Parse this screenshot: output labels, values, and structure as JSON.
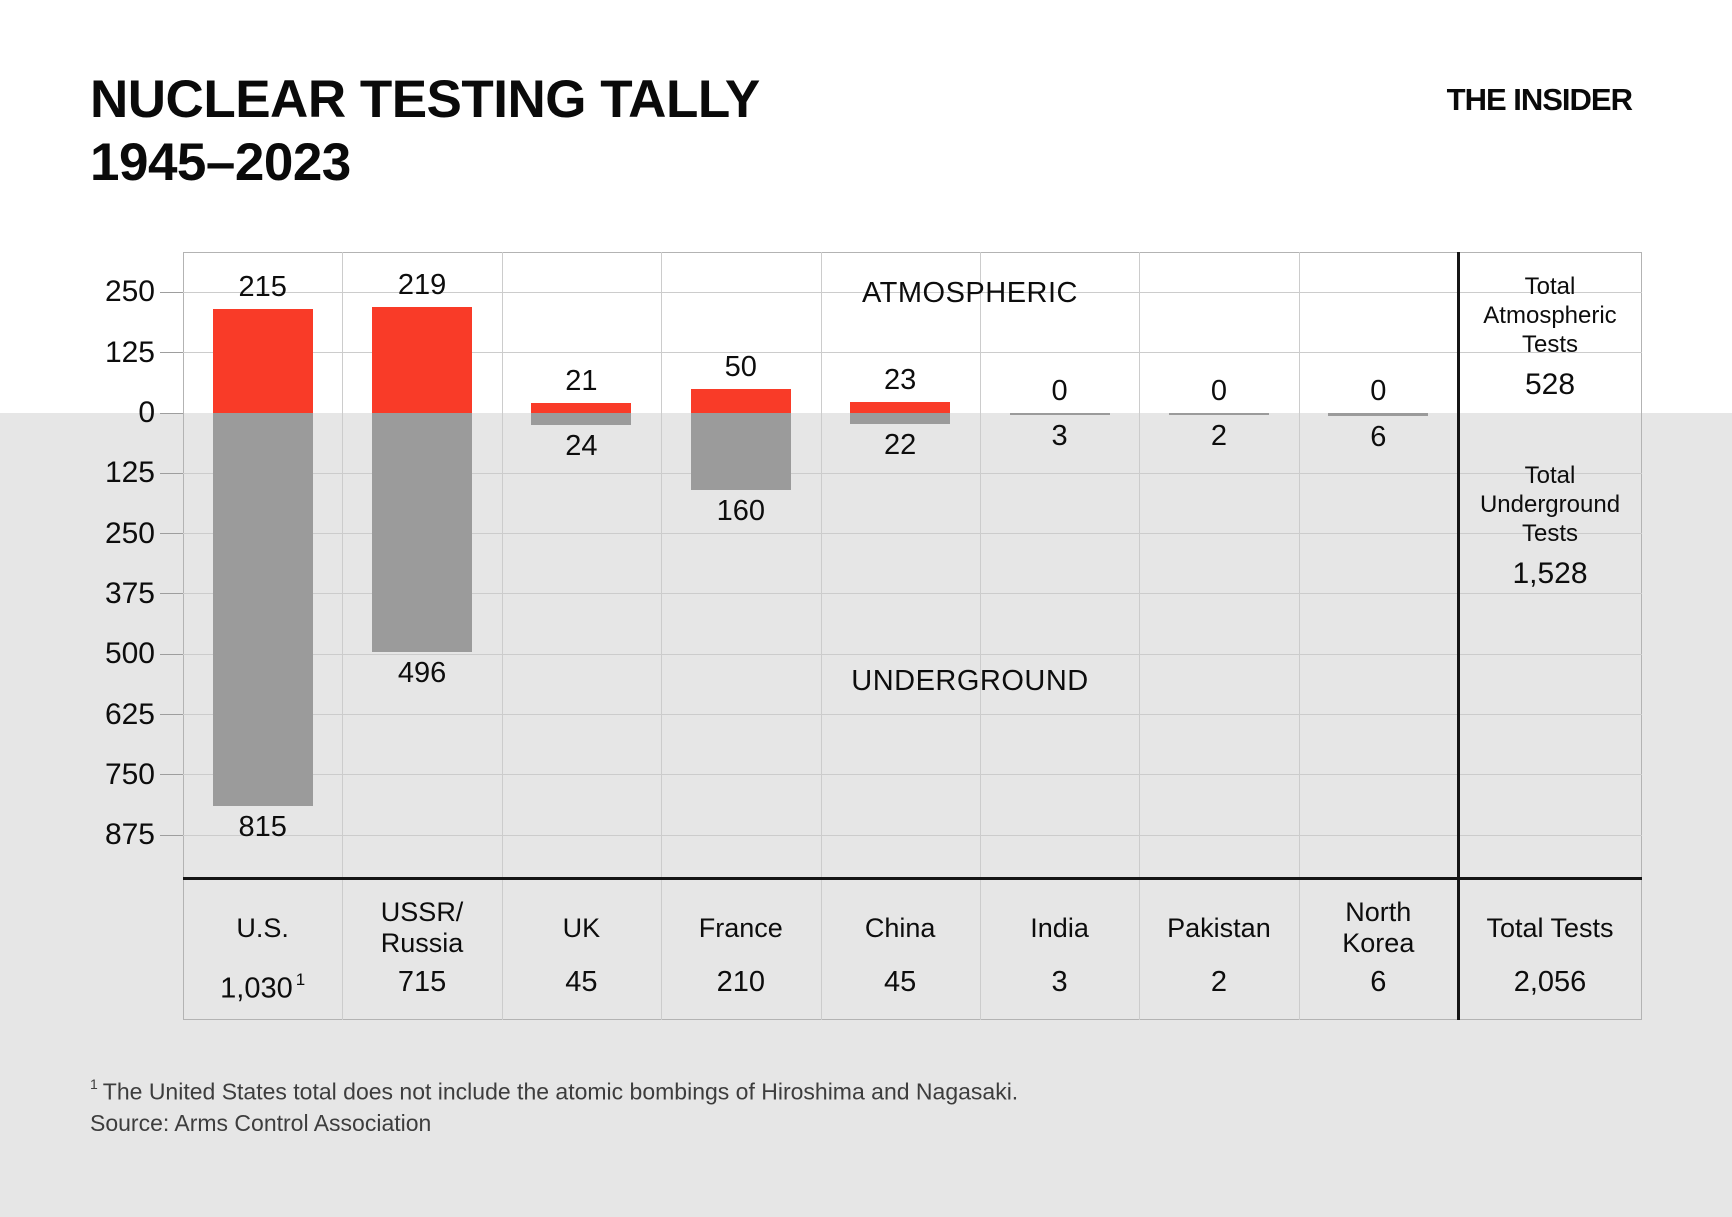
{
  "header": {
    "title_line1": "NUCLEAR TESTING TALLY",
    "title_line2": "1945–2023",
    "brand": "THE INSIDER"
  },
  "chart_data": {
    "type": "bar",
    "variant": "diverging-stacked-vertical",
    "title": "NUCLEAR TESTING TALLY 1945–2023",
    "axis": {
      "ticks": [
        {
          "label": "250",
          "value": 250
        },
        {
          "label": "125",
          "value": 125
        },
        {
          "label": "0",
          "value": 0
        },
        {
          "label": "125",
          "value": -125
        },
        {
          "label": "250",
          "value": -250
        },
        {
          "label": "375",
          "value": -375
        },
        {
          "label": "500",
          "value": -500
        },
        {
          "label": "625",
          "value": -625
        },
        {
          "label": "750",
          "value": -750
        },
        {
          "label": "875",
          "value": -875
        }
      ],
      "ylim_above": 250,
      "ylim_below": 875,
      "grid": true
    },
    "series": [
      {
        "name": "Atmospheric",
        "color": "#f93b28",
        "values": [
          215,
          219,
          21,
          50,
          23,
          0,
          0,
          0
        ]
      },
      {
        "name": "Underground",
        "color": "#9b9b9b",
        "values": [
          815,
          496,
          24,
          160,
          22,
          3,
          2,
          6
        ]
      }
    ],
    "categories": [
      {
        "id": "us",
        "lines": [
          "U.S."
        ],
        "total": "1,030",
        "marker": "1"
      },
      {
        "id": "ussr-russia",
        "lines": [
          "USSR/",
          "Russia"
        ],
        "total": "715",
        "marker": ""
      },
      {
        "id": "uk",
        "lines": [
          "UK"
        ],
        "total": "45",
        "marker": ""
      },
      {
        "id": "france",
        "lines": [
          "France"
        ],
        "total": "210",
        "marker": ""
      },
      {
        "id": "china",
        "lines": [
          "China"
        ],
        "total": "45",
        "marker": ""
      },
      {
        "id": "india",
        "lines": [
          "India"
        ],
        "total": "3",
        "marker": ""
      },
      {
        "id": "pakistan",
        "lines": [
          "Pakistan"
        ],
        "total": "2",
        "marker": ""
      },
      {
        "id": "north-korea",
        "lines": [
          "North",
          "Korea"
        ],
        "total": "6",
        "marker": ""
      }
    ],
    "region_labels": {
      "atmospheric": "ATMOSPHERIC",
      "underground": "UNDERGROUND"
    },
    "summary_column": {
      "atmospheric": {
        "lines": [
          "Total",
          "Atmospheric",
          "Tests"
        ],
        "value": "528"
      },
      "underground": {
        "lines": [
          "Total",
          "Underground",
          "Tests"
        ],
        "value": "1,528"
      },
      "total": {
        "label": "Total Tests",
        "value": "2,056"
      }
    },
    "colors": {
      "atmospheric_bar": "#f93b28",
      "underground_bar": "#9b9b9b",
      "underground_band": "#e6e6e6",
      "gridline": "#cccccc",
      "frame": "#b3b3b3",
      "divider": "#151515"
    }
  },
  "footnote": {
    "marker": "1",
    "text": "The United States total does not include the atomic bombings of Hiroshima and Nagasaki.",
    "source": "Source: Arms Control Association"
  }
}
